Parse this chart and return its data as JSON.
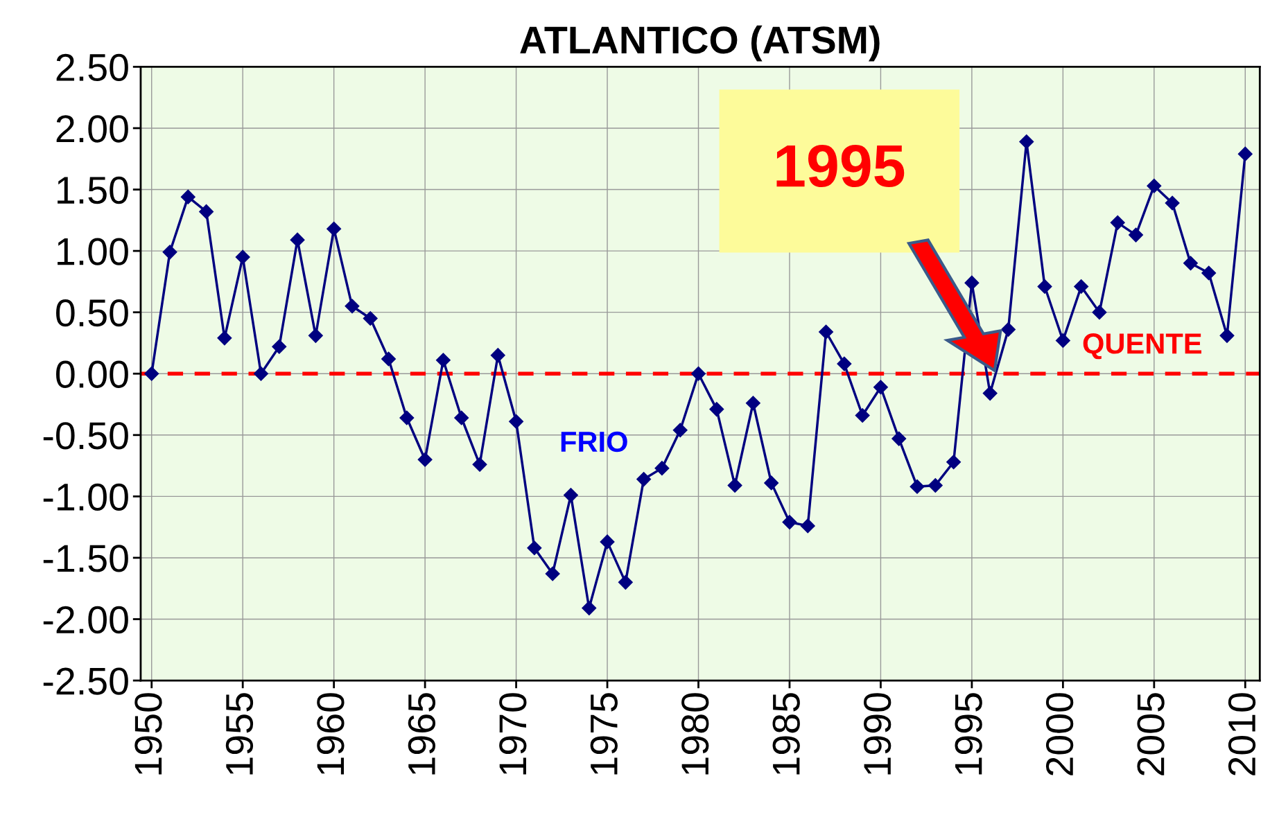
{
  "chart_data": {
    "type": "line",
    "title": "ATLANTICO (ATSM)",
    "x": [
      1950,
      1951,
      1952,
      1953,
      1954,
      1955,
      1956,
      1957,
      1958,
      1959,
      1960,
      1961,
      1962,
      1963,
      1964,
      1965,
      1966,
      1967,
      1968,
      1969,
      1970,
      1971,
      1972,
      1973,
      1974,
      1975,
      1976,
      1977,
      1978,
      1979,
      1980,
      1981,
      1982,
      1983,
      1984,
      1985,
      1986,
      1987,
      1988,
      1989,
      1990,
      1991,
      1992,
      1993,
      1994,
      1995,
      1996,
      1997,
      1998,
      1999,
      2000,
      2001,
      2002,
      2003,
      2004,
      2005,
      2006,
      2007,
      2008,
      2009,
      2010
    ],
    "series": [
      {
        "color": "#000080",
        "values": [
          0.0,
          0.99,
          1.44,
          1.32,
          0.29,
          0.95,
          0.0,
          0.22,
          1.09,
          0.31,
          1.18,
          0.55,
          0.45,
          0.12,
          -0.36,
          -0.7,
          0.11,
          -0.36,
          -0.74,
          0.15,
          -0.39,
          -1.42,
          -1.63,
          -0.99,
          -1.91,
          -1.37,
          -1.7,
          -0.86,
          -0.77,
          -0.46,
          0.0,
          -0.29,
          -0.91,
          -0.24,
          -0.89,
          -1.21,
          -1.24,
          0.34,
          0.08,
          -0.34,
          -0.11,
          -0.53,
          -0.92,
          -0.91,
          -0.72,
          0.74,
          -0.16,
          0.36,
          1.89,
          0.71,
          0.27,
          0.71,
          0.5,
          1.23,
          1.13,
          1.53,
          1.39,
          0.9,
          0.82,
          0.31,
          1.79
        ]
      }
    ],
    "xlim": [
      1949.4,
      2010.8
    ],
    "xticks": [
      1950,
      1955,
      1960,
      1965,
      1970,
      1975,
      1980,
      1985,
      1990,
      1995,
      2000,
      2005,
      2010
    ],
    "ylim": [
      -2.5,
      2.5
    ],
    "yticks": [
      {
        "value": -2.5,
        "label": "-2.50"
      },
      {
        "value": -2.0,
        "label": "-2.00"
      },
      {
        "value": -1.5,
        "label": "-1.50"
      },
      {
        "value": -1.0,
        "label": "-1.00"
      },
      {
        "value": -0.5,
        "label": "-0.50"
      },
      {
        "value": 0.0,
        "label": "0.00"
      },
      {
        "value": 0.5,
        "label": "0.50"
      },
      {
        "value": 1.0,
        "label": "1.00"
      },
      {
        "value": 1.5,
        "label": "1.50"
      },
      {
        "value": 2.0,
        "label": "2.00"
      },
      {
        "value": 2.5,
        "label": "2.50"
      }
    ],
    "ref_lines": [
      {
        "axis": "y",
        "value": 0,
        "color": "#ff0000",
        "line_style": "dashed"
      }
    ],
    "annotations": [
      "1995",
      "FRIO",
      "QUENTE"
    ],
    "grid": true,
    "marker": "diamond",
    "line_style": "solid",
    "legend": false
  }
}
